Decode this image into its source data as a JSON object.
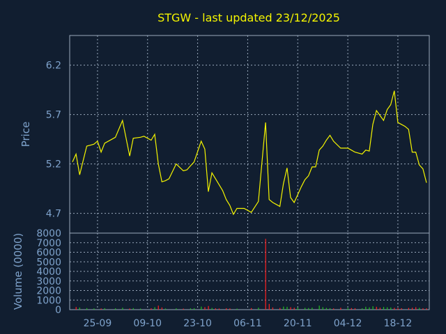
{
  "chart_data": [
    {
      "type": "line",
      "title": "STGW - last updated 23/12/2025",
      "ylabel": "Price",
      "ylim": [
        4.5,
        6.5
      ],
      "yticks": [
        "6.2",
        "5.7",
        "5.2",
        "4.7"
      ],
      "grid": true,
      "colors": {
        "background": "#111e30",
        "grid": "#9aa9bc",
        "line": "#f5f500",
        "text": "#7fa3cc"
      },
      "x": [
        0,
        1,
        2,
        4,
        6,
        7,
        8,
        9,
        12,
        14,
        16,
        17,
        19,
        20,
        22,
        23,
        24,
        25,
        26,
        27,
        29,
        31,
        32,
        33,
        34,
        36,
        37,
        38,
        39,
        40,
        41,
        42,
        43,
        44,
        45,
        46,
        47,
        48,
        50,
        52,
        54,
        55,
        56,
        57,
        58,
        59,
        60,
        61,
        62,
        63,
        64,
        65,
        66,
        67,
        68,
        69,
        70,
        71,
        72,
        73,
        75,
        77,
        78,
        79,
        81,
        82,
        83,
        84,
        85,
        86,
        87,
        88,
        89,
        90,
        91,
        92,
        93,
        94,
        95,
        96,
        97,
        98,
        99
      ],
      "values": [
        5.22,
        5.3,
        5.09,
        5.38,
        5.4,
        5.43,
        5.32,
        5.41,
        5.47,
        5.64,
        5.28,
        5.46,
        5.47,
        5.48,
        5.44,
        5.5,
        5.2,
        5.02,
        5.03,
        5.05,
        5.2,
        5.13,
        5.14,
        5.18,
        5.22,
        5.43,
        5.35,
        4.92,
        5.11,
        5.05,
        4.99,
        4.93,
        4.84,
        4.78,
        4.69,
        4.75,
        4.75,
        4.75,
        4.71,
        4.82,
        5.62,
        4.84,
        4.81,
        4.79,
        4.77,
        5.0,
        5.16,
        4.86,
        4.81,
        4.89,
        4.97,
        5.04,
        5.08,
        5.17,
        5.17,
        5.34,
        5.38,
        5.44,
        5.49,
        5.43,
        5.36,
        5.36,
        5.34,
        5.32,
        5.3,
        5.34,
        5.33,
        5.6,
        5.74,
        5.69,
        5.64,
        5.75,
        5.8,
        5.94,
        5.62,
        5.6,
        5.58,
        5.55,
        5.32,
        5.32,
        5.19,
        5.15,
        5.01
      ]
    },
    {
      "type": "bar",
      "ylabel": "Volume (0000)",
      "ylim": [
        0,
        8000
      ],
      "yticks": [
        "8000",
        "7000",
        "6000",
        "5000",
        "4000",
        "3000",
        "2000",
        "1000",
        "0"
      ],
      "grid": true,
      "x_ticks": [
        "25-09",
        "09-10",
        "23-10",
        "06-11",
        "20-11",
        "04-12",
        "18-12"
      ],
      "bars": [
        {
          "x": 1,
          "v": 280,
          "c": "#ff2020"
        },
        {
          "x": 2,
          "v": 220,
          "c": "#20c020"
        },
        {
          "x": 4,
          "v": 160,
          "c": "#20c020"
        },
        {
          "x": 6,
          "v": 130,
          "c": "#20c020"
        },
        {
          "x": 8,
          "v": 120,
          "c": "#ff2020"
        },
        {
          "x": 9,
          "v": 150,
          "c": "#20c020"
        },
        {
          "x": 12,
          "v": 140,
          "c": "#20c020"
        },
        {
          "x": 14,
          "v": 200,
          "c": "#20c020"
        },
        {
          "x": 16,
          "v": 120,
          "c": "#ff2020"
        },
        {
          "x": 17,
          "v": 160,
          "c": "#20c020"
        },
        {
          "x": 19,
          "v": 110,
          "c": "#20c020"
        },
        {
          "x": 22,
          "v": 140,
          "c": "#ff2020"
        },
        {
          "x": 23,
          "v": 250,
          "c": "#20c020"
        },
        {
          "x": 24,
          "v": 420,
          "c": "#ff2020"
        },
        {
          "x": 25,
          "v": 230,
          "c": "#ff2020"
        },
        {
          "x": 26,
          "v": 120,
          "c": "#20c020"
        },
        {
          "x": 29,
          "v": 140,
          "c": "#20c020"
        },
        {
          "x": 31,
          "v": 110,
          "c": "#ff2020"
        },
        {
          "x": 33,
          "v": 130,
          "c": "#20c020"
        },
        {
          "x": 34,
          "v": 150,
          "c": "#20c020"
        },
        {
          "x": 36,
          "v": 320,
          "c": "#20c020"
        },
        {
          "x": 37,
          "v": 260,
          "c": "#ff2020"
        },
        {
          "x": 38,
          "v": 380,
          "c": "#ff2020"
        },
        {
          "x": 39,
          "v": 180,
          "c": "#20c020"
        },
        {
          "x": 40,
          "v": 140,
          "c": "#ff2020"
        },
        {
          "x": 41,
          "v": 120,
          "c": "#ff2020"
        },
        {
          "x": 43,
          "v": 150,
          "c": "#ff2020"
        },
        {
          "x": 44,
          "v": 130,
          "c": "#ff2020"
        },
        {
          "x": 46,
          "v": 110,
          "c": "#20c020"
        },
        {
          "x": 50,
          "v": 160,
          "c": "#ff2020"
        },
        {
          "x": 52,
          "v": 210,
          "c": "#20c020"
        },
        {
          "x": 54,
          "v": 7400,
          "c": "#ff2020"
        },
        {
          "x": 55,
          "v": 600,
          "c": "#ff2020"
        },
        {
          "x": 56,
          "v": 230,
          "c": "#ff2020"
        },
        {
          "x": 58,
          "v": 180,
          "c": "#ff2020"
        },
        {
          "x": 59,
          "v": 320,
          "c": "#20c020"
        },
        {
          "x": 60,
          "v": 300,
          "c": "#20c020"
        },
        {
          "x": 61,
          "v": 260,
          "c": "#ff2020"
        },
        {
          "x": 62,
          "v": 200,
          "c": "#ff2020"
        },
        {
          "x": 63,
          "v": 220,
          "c": "#20c020"
        },
        {
          "x": 65,
          "v": 190,
          "c": "#20c020"
        },
        {
          "x": 66,
          "v": 170,
          "c": "#20c020"
        },
        {
          "x": 67,
          "v": 210,
          "c": "#20c020"
        },
        {
          "x": 69,
          "v": 420,
          "c": "#20c020"
        },
        {
          "x": 70,
          "v": 260,
          "c": "#20c020"
        },
        {
          "x": 71,
          "v": 180,
          "c": "#20c020"
        },
        {
          "x": 72,
          "v": 150,
          "c": "#20c020"
        },
        {
          "x": 73,
          "v": 130,
          "c": "#ff2020"
        },
        {
          "x": 75,
          "v": 200,
          "c": "#ff2020"
        },
        {
          "x": 77,
          "v": 180,
          "c": "#20c020"
        },
        {
          "x": 78,
          "v": 160,
          "c": "#ff2020"
        },
        {
          "x": 79,
          "v": 150,
          "c": "#ff2020"
        },
        {
          "x": 81,
          "v": 140,
          "c": "#20c020"
        },
        {
          "x": 82,
          "v": 300,
          "c": "#20c020"
        },
        {
          "x": 83,
          "v": 240,
          "c": "#20c020"
        },
        {
          "x": 84,
          "v": 350,
          "c": "#20c020"
        },
        {
          "x": 85,
          "v": 300,
          "c": "#ff2020"
        },
        {
          "x": 86,
          "v": 210,
          "c": "#ff2020"
        },
        {
          "x": 87,
          "v": 280,
          "c": "#20c020"
        },
        {
          "x": 88,
          "v": 250,
          "c": "#20c020"
        },
        {
          "x": 89,
          "v": 230,
          "c": "#20c020"
        },
        {
          "x": 90,
          "v": 190,
          "c": "#ff2020"
        },
        {
          "x": 91,
          "v": 170,
          "c": "#ff2020"
        },
        {
          "x": 92,
          "v": 150,
          "c": "#ff2020"
        },
        {
          "x": 94,
          "v": 180,
          "c": "#ff2020"
        },
        {
          "x": 95,
          "v": 200,
          "c": "#ff2020"
        },
        {
          "x": 96,
          "v": 260,
          "c": "#ff2020"
        },
        {
          "x": 97,
          "v": 190,
          "c": "#20c020"
        },
        {
          "x": 98,
          "v": 150,
          "c": "#ff2020"
        },
        {
          "x": 99,
          "v": 140,
          "c": "#ff2020"
        }
      ]
    }
  ]
}
